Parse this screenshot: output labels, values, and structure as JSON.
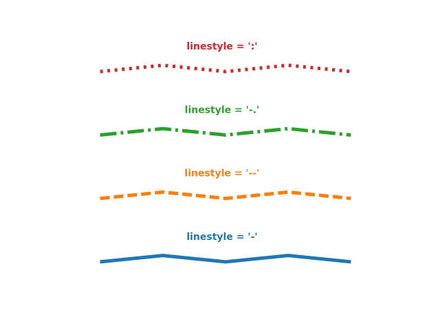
{
  "chart_data": {
    "type": "line",
    "x": [
      0,
      1,
      2,
      3,
      4
    ],
    "xlim": [
      -0.5,
      4.5
    ],
    "ylim": [
      -0.5,
      3.5
    ],
    "axes_visible": false,
    "grid": false,
    "series": [
      {
        "name": "linestyle = '-'",
        "linestyle": "solid",
        "color": "#1f77b4",
        "values": [
          0,
          0.1,
          0,
          0.1,
          0
        ]
      },
      {
        "name": "linestyle = '--'",
        "linestyle": "dashed",
        "color": "#ff7f0e",
        "values": [
          1,
          1.1,
          1,
          1.1,
          1
        ]
      },
      {
        "name": "linestyle = '-.'",
        "linestyle": "dashdot",
        "color": "#2ca02c",
        "values": [
          2,
          2.1,
          2,
          2.1,
          2
        ]
      },
      {
        "name": "linestyle = ':'",
        "linestyle": "dotted",
        "color": "#d62728",
        "values": [
          3,
          3.1,
          3,
          3.1,
          3
        ]
      }
    ]
  }
}
